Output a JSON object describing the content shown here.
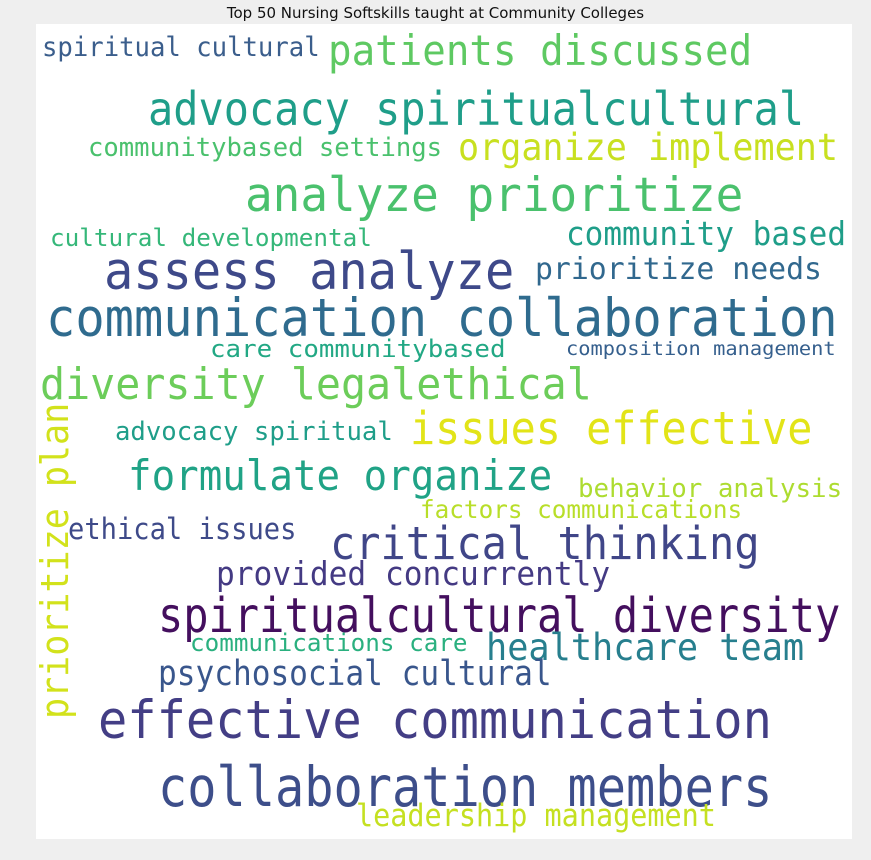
{
  "title": "Top 50 Nursing Softskills taught at Community Colleges",
  "words": [
    {
      "id": "w01",
      "text": "spiritual cultural",
      "color": "#3b5e8c"
    },
    {
      "id": "w02",
      "text": "patients discussed",
      "color": "#5ec962"
    },
    {
      "id": "w03",
      "text": "advocacy spiritualcultural",
      "color": "#1f9e89"
    },
    {
      "id": "w04",
      "text": "communitybased settings",
      "color": "#4ac16d"
    },
    {
      "id": "w05",
      "text": "organize implement",
      "color": "#c8e020"
    },
    {
      "id": "w06",
      "text": "analyze prioritize",
      "color": "#4ac16d"
    },
    {
      "id": "w07",
      "text": "cultural developmental",
      "color": "#35b779"
    },
    {
      "id": "w08",
      "text": "community based",
      "color": "#1f9e89"
    },
    {
      "id": "w09",
      "text": "assess analyze",
      "color": "#3e4989"
    },
    {
      "id": "w10",
      "text": "prioritize needs",
      "color": "#31688e"
    },
    {
      "id": "w11",
      "text": "communication collaboration",
      "color": "#2f6b8e"
    },
    {
      "id": "w12",
      "text": "care communitybased",
      "color": "#22a884"
    },
    {
      "id": "w13",
      "text": "composition management",
      "color": "#355f8d"
    },
    {
      "id": "w14",
      "text": "diversity legalethical",
      "color": "#6ccd5a"
    },
    {
      "id": "w15",
      "text": "advocacy spiritual",
      "color": "#1f9e89"
    },
    {
      "id": "w16",
      "text": "issues effective",
      "color": "#e2e418"
    },
    {
      "id": "w17",
      "text": "prioritize plan",
      "color": "#d2e21b"
    },
    {
      "id": "w18",
      "text": "formulate organize",
      "color": "#20a386"
    },
    {
      "id": "w19",
      "text": "behavior analysis",
      "color": "#addc30"
    },
    {
      "id": "w20",
      "text": "factors communications",
      "color": "#b8de29"
    },
    {
      "id": "w21",
      "text": "ethical issues",
      "color": "#3e4a89"
    },
    {
      "id": "w22",
      "text": "critical thinking",
      "color": "#404688"
    },
    {
      "id": "w23",
      "text": "provided concurrently",
      "color": "#443a83"
    },
    {
      "id": "w24",
      "text": "spiritualcultural diversity",
      "color": "#440f5e"
    },
    {
      "id": "w25",
      "text": "communications care",
      "color": "#2ab07f"
    },
    {
      "id": "w26",
      "text": "healthcare team",
      "color": "#277f8e"
    },
    {
      "id": "w27",
      "text": "psychosocial cultural",
      "color": "#39568c"
    },
    {
      "id": "w28",
      "text": "effective communication",
      "color": "#433e85"
    },
    {
      "id": "w29",
      "text": "collaboration members",
      "color": "#3d4e8a"
    },
    {
      "id": "w30",
      "text": "leadership management",
      "color": "#c5e021"
    }
  ]
}
